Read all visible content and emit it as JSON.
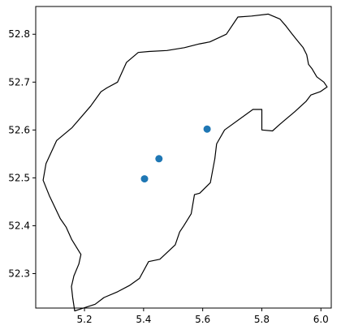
{
  "chart_data": {
    "type": "scatter",
    "title": "",
    "xlabel": "",
    "ylabel": "",
    "xlim": [
      5.035,
      6.035
    ],
    "ylim": [
      52.228,
      52.858
    ],
    "x_ticks": [
      {
        "value": 5.2,
        "label": "5.2"
      },
      {
        "value": 5.4,
        "label": "5.4"
      },
      {
        "value": 5.6,
        "label": "5.6"
      },
      {
        "value": 5.8,
        "label": "5.8"
      },
      {
        "value": 6.0,
        "label": "6.0"
      }
    ],
    "y_ticks": [
      {
        "value": 52.3,
        "label": "52.3"
      },
      {
        "value": 52.4,
        "label": "52.4"
      },
      {
        "value": 52.5,
        "label": "52.5"
      },
      {
        "value": 52.6,
        "label": "52.6"
      },
      {
        "value": 52.7,
        "label": "52.7"
      },
      {
        "value": 52.8,
        "label": "52.8"
      }
    ],
    "grid": false,
    "series": [
      {
        "kind": "points",
        "color": "#1f77b4",
        "points": [
          {
            "x": 5.403,
            "y": 52.498
          },
          {
            "x": 5.452,
            "y": 52.54
          },
          {
            "x": 5.615,
            "y": 52.602
          }
        ]
      },
      {
        "kind": "polygon-outline",
        "color": "#000000",
        "points": [
          [
            5.167,
            52.222
          ],
          [
            5.236,
            52.236
          ],
          [
            5.266,
            52.25
          ],
          [
            5.312,
            52.262
          ],
          [
            5.352,
            52.275
          ],
          [
            5.386,
            52.29
          ],
          [
            5.417,
            52.325
          ],
          [
            5.455,
            52.33
          ],
          [
            5.507,
            52.36
          ],
          [
            5.522,
            52.387
          ],
          [
            5.536,
            52.4
          ],
          [
            5.561,
            52.425
          ],
          [
            5.572,
            52.465
          ],
          [
            5.59,
            52.468
          ],
          [
            5.626,
            52.49
          ],
          [
            5.641,
            52.54
          ],
          [
            5.647,
            52.571
          ],
          [
            5.674,
            52.6
          ],
          [
            5.77,
            52.643
          ],
          [
            5.8,
            52.643
          ],
          [
            5.8,
            52.6
          ],
          [
            5.836,
            52.598
          ],
          [
            5.861,
            52.612
          ],
          [
            5.88,
            52.622
          ],
          [
            5.911,
            52.638
          ],
          [
            5.95,
            52.66
          ],
          [
            5.966,
            52.673
          ],
          [
            5.998,
            52.68
          ],
          [
            6.021,
            52.69
          ],
          [
            6.01,
            52.7
          ],
          [
            5.986,
            52.711
          ],
          [
            5.97,
            52.728
          ],
          [
            5.958,
            52.737
          ],
          [
            5.952,
            52.757
          ],
          [
            5.94,
            52.772
          ],
          [
            5.92,
            52.787
          ],
          [
            5.902,
            52.801
          ],
          [
            5.882,
            52.817
          ],
          [
            5.861,
            52.832
          ],
          [
            5.822,
            52.842
          ],
          [
            5.765,
            52.838
          ],
          [
            5.719,
            52.836
          ],
          [
            5.68,
            52.8
          ],
          [
            5.624,
            52.784
          ],
          [
            5.589,
            52.78
          ],
          [
            5.538,
            52.772
          ],
          [
            5.479,
            52.766
          ],
          [
            5.418,
            52.764
          ],
          [
            5.382,
            52.762
          ],
          [
            5.342,
            52.741
          ],
          [
            5.312,
            52.7
          ],
          [
            5.276,
            52.688
          ],
          [
            5.256,
            52.68
          ],
          [
            5.221,
            52.65
          ],
          [
            5.158,
            52.605
          ],
          [
            5.106,
            52.578
          ],
          [
            5.07,
            52.53
          ],
          [
            5.06,
            52.495
          ],
          [
            5.081,
            52.463
          ],
          [
            5.118,
            52.415
          ],
          [
            5.138,
            52.397
          ],
          [
            5.157,
            52.371
          ],
          [
            5.188,
            52.34
          ],
          [
            5.181,
            52.32
          ],
          [
            5.164,
            52.295
          ],
          [
            5.156,
            52.273
          ],
          [
            5.16,
            52.25
          ],
          [
            5.167,
            52.222
          ]
        ]
      }
    ]
  }
}
